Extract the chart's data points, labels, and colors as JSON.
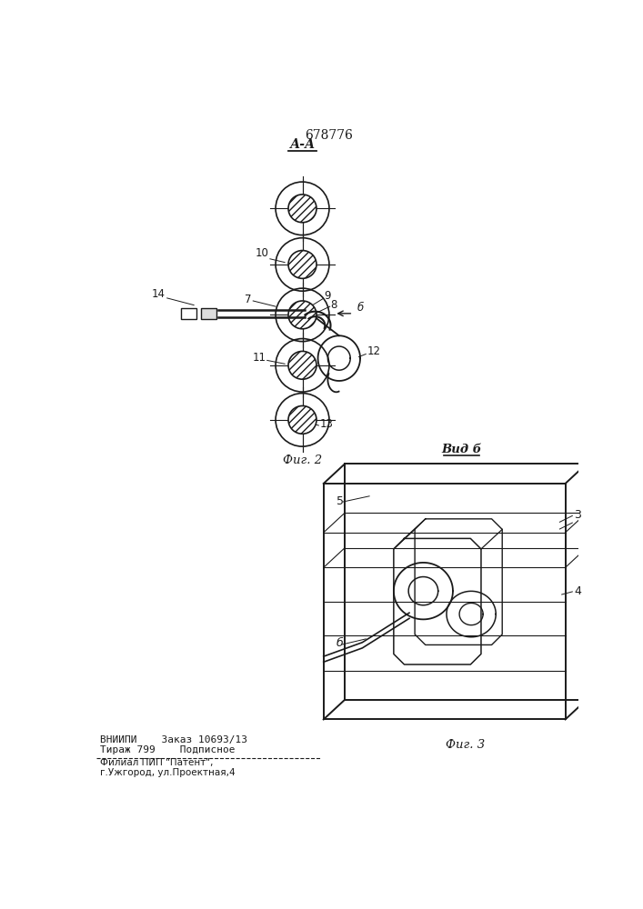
{
  "patent_number": "678776",
  "fig2_label": "А-А",
  "fig2_caption": "Фиг. 2",
  "fig3_caption": "Фиг. 3",
  "view_label": "Вид б",
  "bottom_text1": "ВНИИПИ    Заказ 10693/13",
  "bottom_text2": "Тираж 799    Подписное",
  "bottom_text3": "Филиал ПИП \"Патент\",",
  "bottom_text4": "г.Ужгород, ул.Проектная,4",
  "bg_color": "#ffffff",
  "line_color": "#1a1a1a"
}
